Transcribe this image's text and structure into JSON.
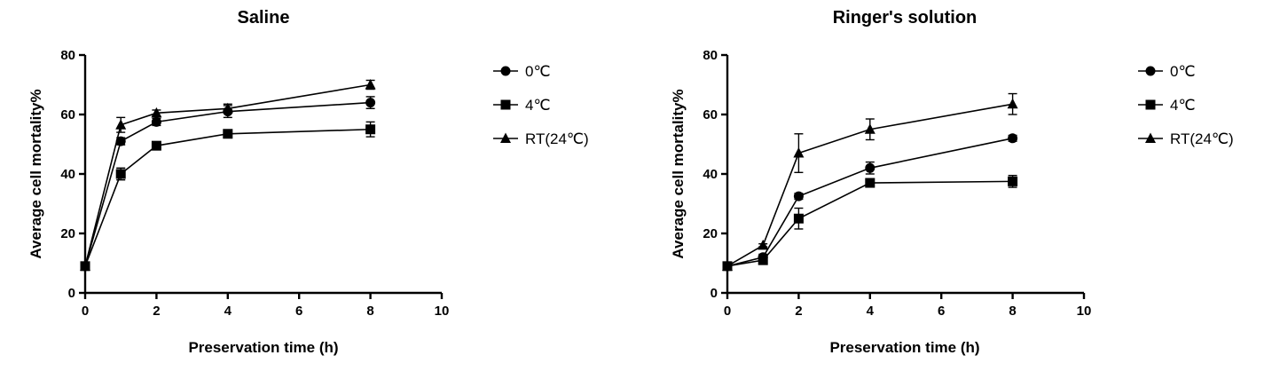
{
  "chart_data": [
    {
      "type": "line",
      "title": "Saline",
      "xlabel": "Preservation time (h)",
      "ylabel": "Average cell mortality%",
      "xlim": [
        0,
        10
      ],
      "ylim": [
        0,
        80
      ],
      "xticks": [
        "0",
        "2",
        "4",
        "6",
        "8",
        "10"
      ],
      "yticks": [
        "0",
        "20",
        "40",
        "60",
        "80"
      ],
      "legend_position": "right",
      "x": [
        0,
        1,
        2,
        4,
        8
      ],
      "series": [
        {
          "name": "0℃",
          "marker": "circle",
          "values": [
            9,
            51,
            57.5,
            61,
            64
          ],
          "errors": [
            0,
            1.2,
            1.2,
            2,
            2
          ]
        },
        {
          "name": "4℃",
          "marker": "square",
          "values": [
            9,
            40,
            49.5,
            53.5,
            55
          ],
          "errors": [
            0,
            2,
            1,
            1,
            2.5
          ]
        },
        {
          "name": "RT(24℃)",
          "marker": "triangle",
          "values": [
            9,
            56.5,
            60.5,
            62,
            70
          ],
          "errors": [
            0,
            2.5,
            1,
            1.5,
            1.5
          ]
        }
      ]
    },
    {
      "type": "line",
      "title": "Ringer's solution",
      "xlabel": "Preservation time (h)",
      "ylabel": "Average cell mortality%",
      "xlim": [
        0,
        10
      ],
      "ylim": [
        0,
        80
      ],
      "xticks": [
        "0",
        "2",
        "4",
        "6",
        "8",
        "10"
      ],
      "yticks": [
        "0",
        "20",
        "40",
        "60",
        "80"
      ],
      "legend_position": "right",
      "x": [
        0,
        1,
        2,
        4,
        8
      ],
      "series": [
        {
          "name": "0℃",
          "marker": "circle",
          "values": [
            9,
            12,
            32.5,
            42,
            52
          ],
          "errors": [
            0,
            1,
            1,
            2,
            1
          ]
        },
        {
          "name": "4℃",
          "marker": "square",
          "values": [
            9,
            11,
            25,
            37,
            37.5
          ],
          "errors": [
            0,
            1,
            3.5,
            1,
            2
          ]
        },
        {
          "name": "RT(24℃)",
          "marker": "triangle",
          "values": [
            9,
            16,
            47,
            55,
            63.5
          ],
          "errors": [
            0,
            0.5,
            6.5,
            3.5,
            3.5
          ]
        }
      ]
    }
  ]
}
